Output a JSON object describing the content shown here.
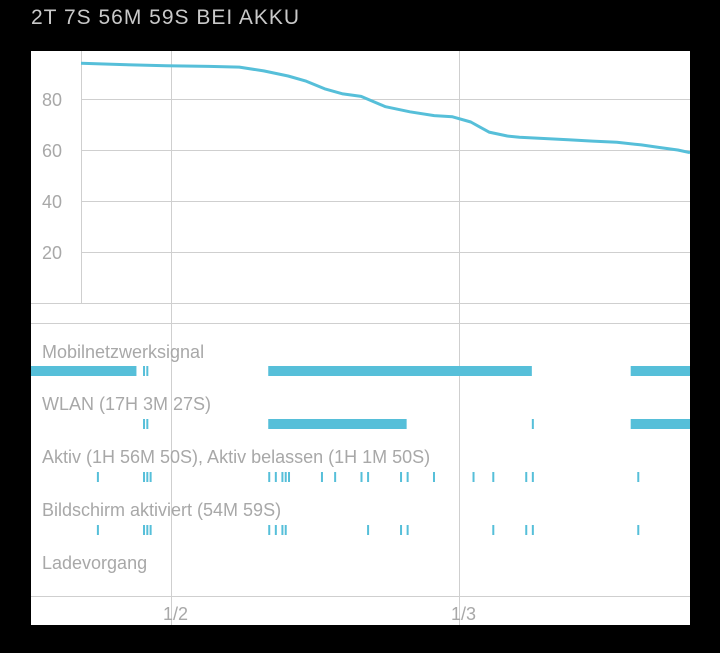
{
  "header": {
    "title": "2T 7S 56M 59S BEI AKKU"
  },
  "chart_data": {
    "type": "line",
    "title": "",
    "ylim": [
      0,
      100
    ],
    "y_ticks": [
      "80",
      "60",
      "40",
      "20"
    ],
    "x_ticks": [
      "1/2",
      "1/3"
    ],
    "grid": true,
    "series": [
      {
        "name": "",
        "x": [
          0.0,
          0.07,
          0.14,
          0.21,
          0.26,
          0.3,
          0.34,
          0.37,
          0.4,
          0.43,
          0.46,
          0.5,
          0.54,
          0.58,
          0.61,
          0.64,
          0.67,
          0.7,
          0.72,
          0.76,
          0.8,
          0.84,
          0.88,
          0.92,
          0.95,
          0.98,
          1.0
        ],
        "values": [
          94,
          93.5,
          93,
          92.8,
          92.5,
          91,
          89,
          87,
          84,
          82,
          81,
          77,
          75,
          73.5,
          73,
          71,
          67,
          65.5,
          65,
          64.5,
          64,
          63.5,
          63,
          62,
          61,
          60,
          59
        ]
      }
    ]
  },
  "status_rows": [
    {
      "label": "Mobilnetzwerksignal",
      "bars": [
        {
          "start": 0.0,
          "end": 0.16
        },
        {
          "start": 0.36,
          "end": 0.76
        },
        {
          "start": 0.91,
          "end": 1.0
        }
      ],
      "ticks": [
        0.17,
        0.175
      ]
    },
    {
      "label": "WLAN (17H 3M 27S)",
      "bars": [
        {
          "start": 0.36,
          "end": 0.57
        },
        {
          "start": 0.91,
          "end": 1.0
        }
      ],
      "ticks": [
        0.17,
        0.175,
        0.76
      ]
    },
    {
      "label": "Aktiv (1H 56M 50S), Aktiv belassen (1H 1M 50S)",
      "bars": [],
      "ticks": [
        0.1,
        0.17,
        0.175,
        0.18,
        0.36,
        0.37,
        0.38,
        0.385,
        0.39,
        0.44,
        0.46,
        0.5,
        0.51,
        0.56,
        0.57,
        0.61,
        0.67,
        0.7,
        0.75,
        0.76,
        0.92
      ]
    },
    {
      "label": "Bildschirm aktiviert (54M 59S)",
      "bars": [],
      "ticks": [
        0.1,
        0.17,
        0.175,
        0.18,
        0.36,
        0.37,
        0.38,
        0.385,
        0.51,
        0.56,
        0.57,
        0.7,
        0.75,
        0.76,
        0.92
      ]
    },
    {
      "label": "Ladevorgang",
      "bars": [],
      "ticks": []
    }
  ],
  "colors": {
    "accent": "#56bfd9",
    "grid": "#cfcfcf",
    "text": "#a8a8a8"
  }
}
